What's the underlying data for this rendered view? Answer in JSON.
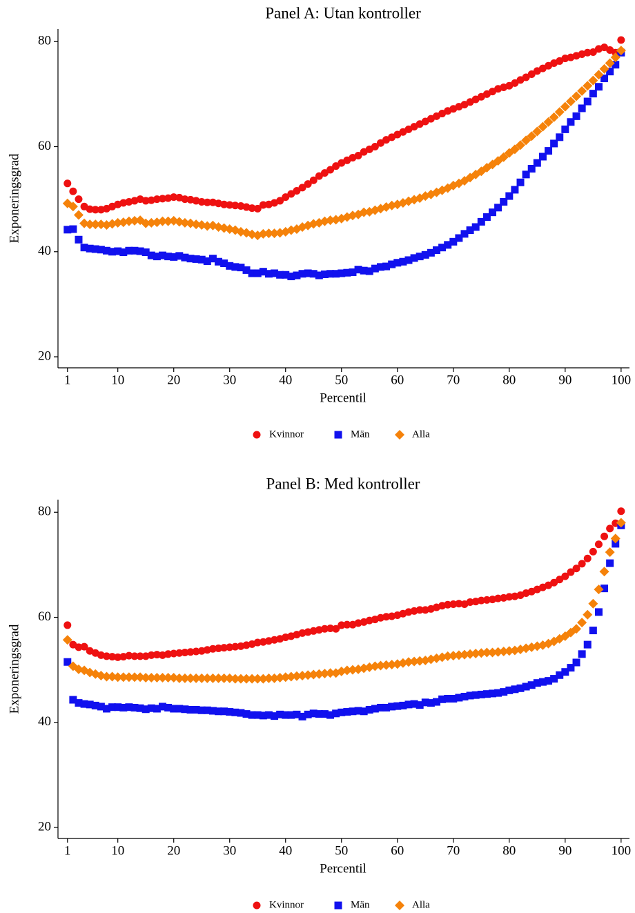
{
  "chart_data": [
    {
      "type": "scatter",
      "title": "Panel A: Utan kontroller",
      "xlabel": "Percentil",
      "ylabel": "Exponeringsgrad",
      "x": [
        1,
        2,
        3,
        4,
        5,
        6,
        7,
        8,
        9,
        10,
        11,
        12,
        13,
        14,
        15,
        16,
        17,
        18,
        19,
        20,
        21,
        22,
        23,
        24,
        25,
        26,
        27,
        28,
        29,
        30,
        31,
        32,
        33,
        34,
        35,
        36,
        37,
        38,
        39,
        40,
        41,
        42,
        43,
        44,
        45,
        46,
        47,
        48,
        49,
        50,
        51,
        52,
        53,
        54,
        55,
        56,
        57,
        58,
        59,
        60,
        61,
        62,
        63,
        64,
        65,
        66,
        67,
        68,
        69,
        70,
        71,
        72,
        73,
        74,
        75,
        76,
        77,
        78,
        79,
        80,
        81,
        82,
        83,
        84,
        85,
        86,
        87,
        88,
        89,
        90,
        91,
        92,
        93,
        94,
        95,
        96,
        97,
        98,
        99,
        100
      ],
      "series": [
        {
          "name": "Kvinnor",
          "color": "#ee1111",
          "marker": "circle",
          "values": [
            53,
            51.5,
            50,
            48.6,
            48.1,
            48,
            48,
            48.2,
            48.6,
            49,
            49.3,
            49.5,
            49.7,
            50,
            49.7,
            49.8,
            50,
            50.1,
            50.2,
            50.4,
            50.3,
            50,
            49.9,
            49.7,
            49.5,
            49.4,
            49.4,
            49.2,
            49,
            48.9,
            48.8,
            48.7,
            48.5,
            48.3,
            48.2,
            48.9,
            49,
            49.3,
            49.7,
            50.4,
            51,
            51.6,
            52.2,
            52.9,
            53.6,
            54.4,
            55,
            55.6,
            56.3,
            56.9,
            57.4,
            57.9,
            58.3,
            59,
            59.5,
            60,
            60.7,
            61.3,
            61.8,
            62.3,
            62.8,
            63.3,
            63.8,
            64.3,
            64.8,
            65.3,
            65.8,
            66.3,
            66.8,
            67.2,
            67.6,
            68,
            68.5,
            69,
            69.5,
            70,
            70.5,
            71,
            71.3,
            71.6,
            72.1,
            72.7,
            73.2,
            73.8,
            74.4,
            74.9,
            75.4,
            75.9,
            76.3,
            76.8,
            77,
            77.3,
            77.6,
            77.9,
            78,
            78.6,
            78.9,
            78.4,
            77.9,
            80.3
          ]
        },
        {
          "name": "Män",
          "color": "#1111ee",
          "marker": "square",
          "values": [
            44.2,
            44.3,
            42.3,
            40.8,
            40.6,
            40.5,
            40.4,
            40.2,
            40,
            40.1,
            39.9,
            40.2,
            40.2,
            40.1,
            39.9,
            39.3,
            39.1,
            39.3,
            39.1,
            39,
            39.2,
            38.9,
            38.7,
            38.6,
            38.5,
            38.2,
            38.7,
            38.1,
            37.8,
            37.3,
            37.1,
            37,
            36.5,
            35.9,
            35.9,
            36.2,
            35.8,
            35.9,
            35.6,
            35.6,
            35.3,
            35.5,
            35.8,
            35.9,
            35.8,
            35.5,
            35.7,
            35.8,
            35.8,
            35.9,
            36,
            36.1,
            36.6,
            36.4,
            36.3,
            36.8,
            37.1,
            37.2,
            37.6,
            37.9,
            38.1,
            38.4,
            38.8,
            39.1,
            39.4,
            39.8,
            40.3,
            40.8,
            41.3,
            41.9,
            42.6,
            43.4,
            44.1,
            44.7,
            45.7,
            46.6,
            47.5,
            48.4,
            49.5,
            50.6,
            51.8,
            53.2,
            54.7,
            55.8,
            56.9,
            58.1,
            59.2,
            60.6,
            61.8,
            63.3,
            64.7,
            65.8,
            67.3,
            68.6,
            70.1,
            71.4,
            73,
            74.3,
            75.6,
            77.9
          ]
        },
        {
          "name": "Alla",
          "color": "#f5820a",
          "marker": "diamond",
          "values": [
            49.2,
            48.6,
            47,
            45.4,
            45.2,
            45.2,
            45.2,
            45.1,
            45.3,
            45.5,
            45.6,
            45.8,
            45.9,
            46,
            45.4,
            45.5,
            45.6,
            45.8,
            45.8,
            45.9,
            45.7,
            45.5,
            45.4,
            45.2,
            45.1,
            44.9,
            45,
            44.7,
            44.5,
            44.3,
            44.1,
            43.8,
            43.6,
            43.3,
            43.1,
            43.4,
            43.5,
            43.5,
            43.6,
            43.8,
            44.1,
            44.3,
            44.7,
            45,
            45.3,
            45.5,
            45.8,
            46,
            46.1,
            46.3,
            46.6,
            46.9,
            47.1,
            47.5,
            47.6,
            47.9,
            48.2,
            48.5,
            48.8,
            49,
            49.3,
            49.6,
            49.9,
            50.2,
            50.6,
            50.9,
            51.3,
            51.7,
            52.1,
            52.6,
            53,
            53.5,
            54.1,
            54.7,
            55.3,
            56,
            56.6,
            57.3,
            58,
            58.8,
            59.5,
            60.3,
            61.2,
            62,
            62.9,
            63.8,
            64.7,
            65.6,
            66.6,
            67.6,
            68.6,
            69.6,
            70.6,
            71.6,
            72.6,
            73.7,
            74.8,
            75.9,
            77,
            78.3
          ]
        }
      ],
      "xlim": [
        -0.7,
        101.5
      ],
      "xticks": [
        1,
        10,
        20,
        30,
        40,
        50,
        60,
        70,
        80,
        90,
        100
      ],
      "ylim": [
        17.9,
        82.4
      ],
      "yticks": [
        20,
        40,
        60,
        80
      ],
      "legend": "bottom"
    },
    {
      "type": "scatter",
      "title": "Panel B: Med kontroller",
      "xlabel": "Percentil",
      "ylabel": "Exponeringsgrad",
      "x": [
        1,
        2,
        3,
        4,
        5,
        6,
        7,
        8,
        9,
        10,
        11,
        12,
        13,
        14,
        15,
        16,
        17,
        18,
        19,
        20,
        21,
        22,
        23,
        24,
        25,
        26,
        27,
        28,
        29,
        30,
        31,
        32,
        33,
        34,
        35,
        36,
        37,
        38,
        39,
        40,
        41,
        42,
        43,
        44,
        45,
        46,
        47,
        48,
        49,
        50,
        51,
        52,
        53,
        54,
        55,
        56,
        57,
        58,
        59,
        60,
        61,
        62,
        63,
        64,
        65,
        66,
        67,
        68,
        69,
        70,
        71,
        72,
        73,
        74,
        75,
        76,
        77,
        78,
        79,
        80,
        81,
        82,
        83,
        84,
        85,
        86,
        87,
        88,
        89,
        90,
        91,
        92,
        93,
        94,
        95,
        96,
        97,
        98,
        99,
        100
      ],
      "series": [
        {
          "name": "Kvinnor",
          "color": "#ee1111",
          "marker": "circle",
          "values": [
            58.5,
            54.8,
            54.3,
            54.4,
            53.6,
            53.2,
            52.8,
            52.6,
            52.5,
            52.4,
            52.5,
            52.7,
            52.6,
            52.6,
            52.6,
            52.8,
            52.9,
            52.8,
            53,
            53.1,
            53.2,
            53.3,
            53.4,
            53.5,
            53.6,
            53.8,
            54,
            54.1,
            54.2,
            54.3,
            54.4,
            54.5,
            54.7,
            54.9,
            55.2,
            55.3,
            55.5,
            55.7,
            55.9,
            56.2,
            56.4,
            56.7,
            57,
            57.2,
            57.4,
            57.6,
            57.8,
            57.9,
            57.8,
            58.5,
            58.6,
            58.6,
            58.9,
            59.1,
            59.4,
            59.6,
            59.9,
            60.1,
            60.2,
            60.4,
            60.7,
            61,
            61.2,
            61.4,
            61.4,
            61.6,
            61.9,
            62.2,
            62.4,
            62.5,
            62.6,
            62.5,
            62.9,
            63,
            63.2,
            63.3,
            63.4,
            63.6,
            63.7,
            63.9,
            64,
            64.2,
            64.6,
            64.9,
            65.3,
            65.7,
            66.1,
            66.6,
            67.2,
            67.8,
            68.6,
            69.3,
            70.2,
            71.2,
            72.5,
            73.9,
            75.4,
            76.9,
            77.9,
            80.2
          ]
        },
        {
          "name": "Män",
          "color": "#1111ee",
          "marker": "square",
          "values": [
            51.5,
            44.3,
            43.7,
            43.5,
            43.4,
            43.2,
            43,
            42.6,
            42.9,
            42.9,
            42.8,
            42.9,
            42.8,
            42.7,
            42.5,
            42.7,
            42.6,
            43,
            42.8,
            42.6,
            42.6,
            42.5,
            42.4,
            42.4,
            42.3,
            42.3,
            42.2,
            42.1,
            42.1,
            42,
            41.9,
            41.8,
            41.6,
            41.4,
            41.4,
            41.3,
            41.4,
            41.2,
            41.5,
            41.4,
            41.4,
            41.5,
            41.1,
            41.5,
            41.7,
            41.6,
            41.6,
            41.4,
            41.7,
            41.9,
            42,
            42.1,
            42.2,
            42.1,
            42.4,
            42.6,
            42.8,
            42.8,
            43,
            43.1,
            43.2,
            43.4,
            43.5,
            43.3,
            43.8,
            43.7,
            43.9,
            44.4,
            44.5,
            44.5,
            44.7,
            44.9,
            45.1,
            45.2,
            45.3,
            45.4,
            45.5,
            45.6,
            45.8,
            46.1,
            46.3,
            46.5,
            46.8,
            47.1,
            47.5,
            47.7,
            47.9,
            48.3,
            49,
            49.6,
            50.4,
            51.4,
            53,
            54.8,
            57.5,
            61,
            65.5,
            70.3,
            74,
            77.5
          ]
        },
        {
          "name": "Alla",
          "color": "#f5820a",
          "marker": "diamond",
          "values": [
            55.7,
            50.7,
            50.1,
            49.9,
            49.5,
            49.2,
            48.9,
            48.7,
            48.7,
            48.6,
            48.6,
            48.6,
            48.6,
            48.6,
            48.5,
            48.5,
            48.5,
            48.5,
            48.5,
            48.5,
            48.4,
            48.4,
            48.4,
            48.4,
            48.4,
            48.4,
            48.4,
            48.4,
            48.4,
            48.4,
            48.3,
            48.3,
            48.3,
            48.3,
            48.3,
            48.3,
            48.4,
            48.4,
            48.5,
            48.6,
            48.7,
            48.8,
            48.9,
            49,
            49.1,
            49.2,
            49.3,
            49.4,
            49.4,
            49.7,
            49.9,
            50,
            50.1,
            50.3,
            50.5,
            50.7,
            50.8,
            50.9,
            51,
            51.1,
            51.3,
            51.5,
            51.6,
            51.7,
            51.8,
            52,
            52.2,
            52.4,
            52.6,
            52.7,
            52.8,
            52.9,
            53,
            53.1,
            53.2,
            53.3,
            53.3,
            53.4,
            53.5,
            53.6,
            53.7,
            53.9,
            54.1,
            54.3,
            54.5,
            54.7,
            55,
            55.4,
            55.9,
            56.4,
            57.1,
            57.8,
            59,
            60.5,
            62.6,
            65.3,
            68.7,
            72.4,
            75,
            78
          ]
        }
      ],
      "xlim": [
        -0.7,
        101.5
      ],
      "xticks": [
        1,
        10,
        20,
        30,
        40,
        50,
        60,
        70,
        80,
        90,
        100
      ],
      "ylim": [
        17.9,
        82.4
      ],
      "yticks": [
        20,
        40,
        60,
        80
      ],
      "legend": "bottom"
    }
  ]
}
